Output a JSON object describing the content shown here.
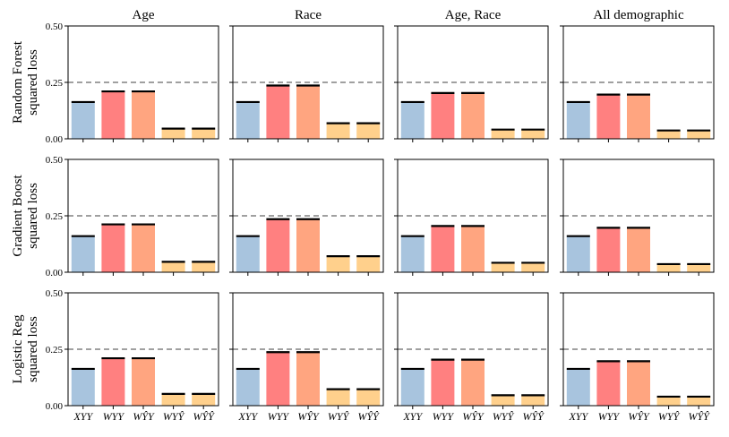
{
  "chart_data": {
    "type": "bar",
    "layout": "grid-3x4",
    "column_titles": [
      "Age",
      "Race",
      "Age, Race",
      "All demographic"
    ],
    "row_labels": [
      [
        "Random Forest",
        "squared loss"
      ],
      [
        "Gradient Boost",
        "squared loss"
      ],
      [
        "Logistic Reg",
        "squared loss"
      ]
    ],
    "categories": [
      "XYY",
      "WYY",
      "WŶY",
      "WYŶ",
      "WŶŶ"
    ],
    "bar_colors": [
      "#a8c4de",
      "#ff8080",
      "#ffa580",
      "#ffd08c",
      "#ffd08c"
    ],
    "ylim": [
      0,
      0.5
    ],
    "yticks": [
      0,
      0.25,
      0.5
    ],
    "ytick_labels": [
      "0.00",
      "0.25",
      "0.50"
    ],
    "reference_line": 0.25,
    "panels": [
      [
        {
          "values": [
            0.163,
            0.21,
            0.21,
            0.045,
            0.045
          ]
        },
        {
          "values": [
            0.163,
            0.236,
            0.236,
            0.069,
            0.069
          ]
        },
        {
          "values": [
            0.163,
            0.203,
            0.203,
            0.041,
            0.041
          ]
        },
        {
          "values": [
            0.163,
            0.196,
            0.196,
            0.037,
            0.037
          ]
        }
      ],
      [
        {
          "values": [
            0.16,
            0.212,
            0.212,
            0.046,
            0.046
          ]
        },
        {
          "values": [
            0.16,
            0.235,
            0.235,
            0.071,
            0.071
          ]
        },
        {
          "values": [
            0.16,
            0.205,
            0.205,
            0.042,
            0.042
          ]
        },
        {
          "values": [
            0.16,
            0.197,
            0.197,
            0.036,
            0.036
          ]
        }
      ],
      [
        {
          "values": [
            0.163,
            0.21,
            0.21,
            0.052,
            0.052
          ]
        },
        {
          "values": [
            0.163,
            0.237,
            0.237,
            0.073,
            0.073
          ]
        },
        {
          "values": [
            0.163,
            0.204,
            0.204,
            0.046,
            0.046
          ]
        },
        {
          "values": [
            0.163,
            0.197,
            0.197,
            0.04,
            0.04
          ]
        }
      ]
    ]
  }
}
